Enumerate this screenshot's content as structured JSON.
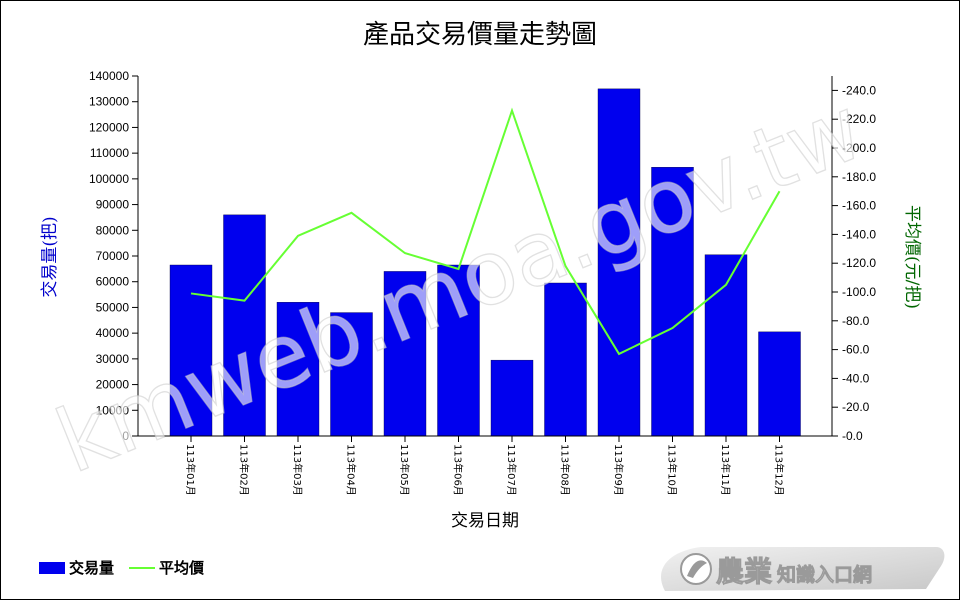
{
  "chart_data": {
    "type": "bar+line",
    "title": "產品交易價量走勢圖",
    "xlabel": "交易日期",
    "ylabel_left": "交易量(把)",
    "ylabel_right": "平均價(元/把)",
    "categories": [
      "113年01月",
      "113年02月",
      "113年03月",
      "113年04月",
      "113年05月",
      "113年06月",
      "113年07月",
      "113年08月",
      "113年09月",
      "113年10月",
      "113年11月",
      "113年12月"
    ],
    "series": [
      {
        "name": "交易量",
        "type": "bar",
        "axis": "left",
        "color": "#0000ee",
        "values": [
          66500,
          86000,
          52000,
          48000,
          64000,
          66500,
          29500,
          59500,
          135000,
          104500,
          70500,
          40500
        ]
      },
      {
        "name": "平均價",
        "type": "line",
        "axis": "right",
        "color": "#66ff33",
        "values": [
          99,
          94,
          139,
          155,
          127,
          116,
          226,
          118,
          57,
          75,
          105,
          170
        ]
      }
    ],
    "ylim_left": [
      0,
      140000
    ],
    "yticks_left": [
      0,
      10000,
      20000,
      30000,
      40000,
      50000,
      60000,
      70000,
      80000,
      90000,
      100000,
      110000,
      120000,
      130000,
      140000
    ],
    "ylim_right": [
      0,
      250
    ],
    "yticks_right": [
      0,
      20,
      40,
      60,
      80,
      100,
      120,
      140,
      160,
      180,
      200,
      220,
      240
    ],
    "right_tick_decimals": 1,
    "grid": false,
    "legend_position": "bottom-left"
  },
  "watermark": "kmweb.moa.gov.tw",
  "logo": {
    "big": "農業",
    "small": "知識入口網"
  },
  "colors": {
    "left_axis_label": "#0000cc",
    "right_axis_label": "#006600"
  }
}
